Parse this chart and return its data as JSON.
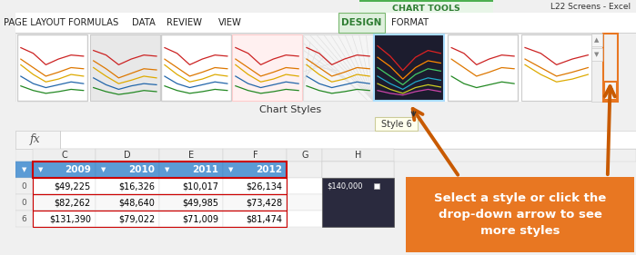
{
  "bg_color": "#f0f0f0",
  "title_bar_text": "CHART TOOLS",
  "title_bar_color": "#e8f5e8",
  "title_bar_text_color": "#2e7d32",
  "green_bar_color": "#4caf50",
  "window_title": "L22 Screens - Excel",
  "menu_items": [
    "PAGE LAYOUT",
    "FORMULAS",
    "DATA",
    "REVIEW",
    "VIEW",
    "DESIGN",
    "FORMAT"
  ],
  "menu_active": "DESIGN",
  "menu_active_color": "#dff0de",
  "menu_active_text_color": "#2e7d32",
  "section_label": "Chart Styles",
  "tooltip_text": "Style 6",
  "fx_label": "fx",
  "col_labels": [
    "C",
    "D",
    "E",
    "F",
    "G",
    "H"
  ],
  "header_row": [
    "2009",
    "2010",
    "2011",
    "2012"
  ],
  "data_rows": [
    [
      "0",
      "$49,225",
      "$16,326",
      "$10,017",
      "$26,134"
    ],
    [
      "0",
      "$82,262",
      "$48,640",
      "$49,985",
      "$73,428"
    ],
    [
      "6",
      "$131,390",
      "$79,022",
      "$71,009",
      "$81,474"
    ]
  ],
  "orange_box_text": "Select a style or click the\ndrop-down arrow to see\nmore styles",
  "orange_color": "#e87722",
  "chart_value": "$140,000",
  "arrow_color": "#c85a00",
  "dark_thumb_bg": "#1c1c2e",
  "header_blue": "#5b9bd5",
  "row_white": "#ffffff",
  "row_gray": "#f8f8f8",
  "ribbon_white": "#ffffff",
  "scrollbar_bg": "#f0f0f0",
  "scrollbar_arrow_box_orange": "#e87722",
  "thumb_colors_normal": [
    "#cc2222",
    "#dd7700",
    "#ddaa00",
    "#2266aa",
    "#228822"
  ],
  "thumb_colors_dark": [
    "#cc2222",
    "#dd8800",
    "#22aa44",
    "#2299cc",
    "#885522",
    "#cc6688"
  ],
  "ribbon_separator": "#d0d0d0",
  "col_header_bg": "#eeeeee",
  "col_header_border": "#cccccc",
  "grid_border": "#d8d8d8"
}
